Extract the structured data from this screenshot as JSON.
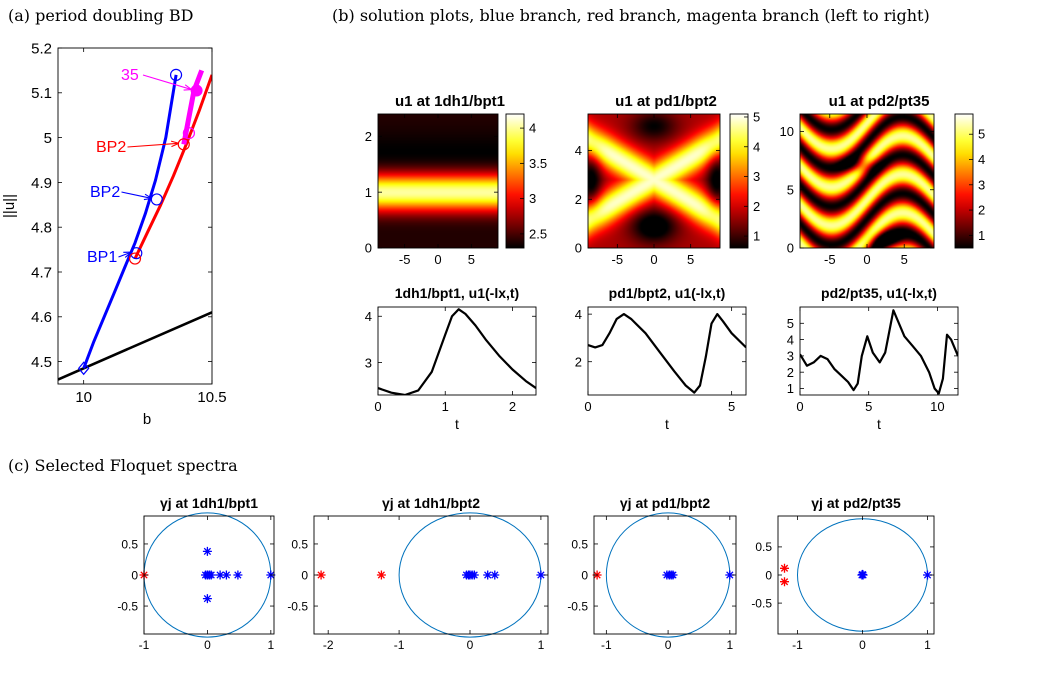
{
  "sections": {
    "a": "(a) period doubling BD",
    "b": "(b) solution plots, blue branch, red branch, magenta branch (left to right)",
    "c": "(c) Selected Floquet spectra"
  },
  "colors": {
    "blue": "#0000ff",
    "red": "#ff0000",
    "magenta": "#ff00ff",
    "black": "#000000",
    "circle": "#0072bd"
  },
  "chart_data": [
    {
      "id": "bd",
      "type": "line",
      "xlabel": "b",
      "ylabel": "||u||",
      "xlim": [
        9.9,
        10.5
      ],
      "ylim": [
        4.45,
        5.2
      ],
      "xticks": [
        10,
        10.5
      ],
      "yticks": [
        4.5,
        4.6,
        4.7,
        4.8,
        4.9,
        5,
        5.1,
        5.2
      ],
      "series": [
        {
          "color": "black",
          "x": [
            9.9,
            10.5
          ],
          "y": [
            4.46,
            4.61
          ]
        },
        {
          "color": "blue",
          "x": [
            10.0,
            10.04,
            10.08,
            10.12,
            10.16,
            10.2,
            10.24,
            10.28,
            10.32,
            10.36
          ],
          "y": [
            4.485,
            4.545,
            4.6,
            4.655,
            4.71,
            4.765,
            4.83,
            4.905,
            5.0,
            5.14
          ]
        },
        {
          "color": "red",
          "x": [
            10.2,
            10.25,
            10.3,
            10.35,
            10.4,
            10.45,
            10.5
          ],
          "y": [
            4.73,
            4.79,
            4.85,
            4.915,
            4.985,
            5.06,
            5.14
          ]
        },
        {
          "color": "magenta",
          "x": [
            10.39,
            10.41,
            10.43,
            10.46
          ],
          "y": [
            4.985,
            5.045,
            5.105,
            5.15
          ]
        }
      ],
      "markers": [
        {
          "shape": "diamond",
          "color": "blue",
          "x": 10.0,
          "y": 4.485
        },
        {
          "shape": "circle",
          "color": "blue",
          "x": 10.205,
          "y": 4.742
        },
        {
          "shape": "circle",
          "color": "blue",
          "x": 10.285,
          "y": 4.862
        },
        {
          "shape": "circle",
          "color": "blue",
          "x": 10.36,
          "y": 5.14
        },
        {
          "shape": "circle",
          "color": "red",
          "x": 10.2,
          "y": 4.73
        },
        {
          "shape": "circle",
          "color": "red",
          "x": 10.39,
          "y": 4.985
        },
        {
          "shape": "circle",
          "color": "magenta",
          "x": 10.41,
          "y": 5.01
        },
        {
          "shape": "filled-circle",
          "color": "magenta",
          "x": 10.44,
          "y": 5.105
        }
      ],
      "annotations": [
        {
          "text": "35",
          "color": "magenta",
          "x": 10.44,
          "y": 5.105
        },
        {
          "text": "BP2",
          "color": "red",
          "x": 10.39,
          "y": 4.985
        },
        {
          "text": "BP2",
          "color": "blue",
          "x": 10.285,
          "y": 4.862
        },
        {
          "text": "BP1",
          "color": "blue",
          "x": 10.205,
          "y": 4.742
        }
      ]
    },
    {
      "id": "hm1",
      "type": "heatmap",
      "title": "u1 at 1dh1/bpt1",
      "xlim": [
        -9,
        9
      ],
      "ylim": [
        0,
        2.4
      ],
      "xticks": [
        -5,
        0,
        5
      ],
      "yticks": [
        0,
        1,
        2
      ],
      "pattern": "horizontal-band",
      "colorbar": {
        "ticks": [
          2.5,
          3,
          3.5,
          4
        ],
        "range": [
          2.3,
          4.2
        ]
      }
    },
    {
      "id": "hm2",
      "type": "heatmap",
      "title": "u1 at pd1/bpt2",
      "xlim": [
        -9,
        9
      ],
      "ylim": [
        0,
        5.5
      ],
      "xticks": [
        -5,
        0,
        5
      ],
      "yticks": [
        0,
        2,
        4
      ],
      "pattern": "x-crossing",
      "colorbar": {
        "ticks": [
          1,
          2,
          3,
          4,
          5
        ],
        "range": [
          0.6,
          5.1
        ]
      }
    },
    {
      "id": "hm3",
      "type": "heatmap",
      "title": "u1 at pd2/pt35",
      "xlim": [
        -9,
        9
      ],
      "ylim": [
        0,
        11.5
      ],
      "xticks": [
        -5,
        0,
        5
      ],
      "yticks": [
        0,
        5,
        10
      ],
      "pattern": "waves",
      "colorbar": {
        "ticks": [
          1,
          2,
          3,
          4,
          5
        ],
        "range": [
          0.5,
          5.8
        ]
      }
    },
    {
      "id": "ts1",
      "type": "line",
      "title": "1dh1/bpt1, u1(-lx,t)",
      "xlabel": "t",
      "xlim": [
        0,
        2.35
      ],
      "ylim": [
        2.3,
        4.2
      ],
      "xticks": [
        0,
        1,
        2
      ],
      "yticks": [
        3,
        4
      ],
      "x": [
        0,
        0.2,
        0.4,
        0.6,
        0.8,
        1.0,
        1.1,
        1.2,
        1.3,
        1.45,
        1.6,
        1.8,
        2.0,
        2.2,
        2.35
      ],
      "y": [
        2.45,
        2.35,
        2.3,
        2.4,
        2.8,
        3.6,
        4.0,
        4.15,
        4.05,
        3.8,
        3.5,
        3.15,
        2.85,
        2.6,
        2.45
      ]
    },
    {
      "id": "ts2",
      "type": "line",
      "title": "pd1/bpt2, u1(-lx,t)",
      "xlabel": "t",
      "xlim": [
        0,
        5.5
      ],
      "ylim": [
        0.6,
        4.3
      ],
      "xticks": [
        0,
        5
      ],
      "yticks": [
        2,
        4
      ],
      "x": [
        0,
        0.25,
        0.5,
        0.75,
        1.0,
        1.25,
        1.5,
        2.0,
        2.5,
        3.0,
        3.4,
        3.7,
        3.9,
        4.1,
        4.3,
        4.5,
        4.7,
        5.0,
        5.5
      ],
      "y": [
        2.7,
        2.6,
        2.7,
        3.2,
        3.8,
        4.0,
        3.8,
        3.2,
        2.4,
        1.6,
        1.0,
        0.7,
        1.0,
        2.2,
        3.6,
        4.0,
        3.7,
        3.2,
        2.6
      ]
    },
    {
      "id": "ts3",
      "type": "line",
      "title": "pd2/pt35, u1(-lx,t)",
      "xlabel": "t",
      "xlim": [
        0,
        11.5
      ],
      "ylim": [
        0.6,
        6.0
      ],
      "xticks": [
        0,
        5,
        10
      ],
      "yticks": [
        1,
        2,
        3,
        4,
        5
      ],
      "x": [
        0,
        0.5,
        1.0,
        1.5,
        2.0,
        2.5,
        3.0,
        3.5,
        3.9,
        4.2,
        4.5,
        4.9,
        5.3,
        5.8,
        6.2,
        6.5,
        6.8,
        7.1,
        7.6,
        8.2,
        8.8,
        9.4,
        9.8,
        10.1,
        10.4,
        10.7,
        11.0,
        11.5
      ],
      "y": [
        3.1,
        2.4,
        2.6,
        3.0,
        2.8,
        2.2,
        1.8,
        1.4,
        0.9,
        1.3,
        3.0,
        4.2,
        3.2,
        2.6,
        3.2,
        4.5,
        5.8,
        5.2,
        4.2,
        3.6,
        3.0,
        2.0,
        1.0,
        0.7,
        1.6,
        4.3,
        4.0,
        3.0
      ]
    },
    {
      "id": "fl1",
      "type": "scatter",
      "title": "γj at 1dh1/bpt1",
      "xlim": [
        -1,
        1.05
      ],
      "ylim": [
        -0.95,
        0.95
      ],
      "xticks": [
        -1,
        0,
        1
      ],
      "yticks": [
        -0.5,
        0,
        0.5
      ],
      "unit_circle": true,
      "points": [
        {
          "x": -1.0,
          "y": 0,
          "color": "red"
        },
        {
          "x": 1.0,
          "y": 0,
          "color": "blue"
        },
        {
          "x": 0,
          "y": 0.38,
          "color": "blue"
        },
        {
          "x": 0,
          "y": -0.38,
          "color": "blue"
        },
        {
          "x": -0.03,
          "y": 0,
          "color": "blue"
        },
        {
          "x": 0,
          "y": 0,
          "color": "blue"
        },
        {
          "x": 0.03,
          "y": 0,
          "color": "blue"
        },
        {
          "x": 0.06,
          "y": 0,
          "color": "blue"
        },
        {
          "x": 0.2,
          "y": 0,
          "color": "blue"
        },
        {
          "x": 0.3,
          "y": 0,
          "color": "blue"
        },
        {
          "x": 0.48,
          "y": 0,
          "color": "blue"
        }
      ]
    },
    {
      "id": "fl2",
      "type": "scatter",
      "title": "γj at 1dh1/bpt2",
      "xlim": [
        -2.2,
        1.1
      ],
      "ylim": [
        -0.95,
        0.95
      ],
      "xticks": [
        -2,
        -1,
        0,
        1
      ],
      "yticks": [
        -0.5,
        0,
        0.5
      ],
      "unit_circle": true,
      "points": [
        {
          "x": -2.1,
          "y": 0,
          "color": "red"
        },
        {
          "x": -1.25,
          "y": 0,
          "color": "red"
        },
        {
          "x": 1.0,
          "y": 0,
          "color": "blue"
        },
        {
          "x": -0.05,
          "y": 0,
          "color": "blue"
        },
        {
          "x": -0.02,
          "y": 0,
          "color": "blue"
        },
        {
          "x": 0,
          "y": 0,
          "color": "blue"
        },
        {
          "x": 0.03,
          "y": 0,
          "color": "blue"
        },
        {
          "x": 0.06,
          "y": 0,
          "color": "blue"
        },
        {
          "x": 0.25,
          "y": 0,
          "color": "blue"
        },
        {
          "x": 0.35,
          "y": 0,
          "color": "blue"
        }
      ]
    },
    {
      "id": "fl3",
      "type": "scatter",
      "title": "γj at pd1/bpt2",
      "xlim": [
        -1.2,
        1.1
      ],
      "ylim": [
        -0.95,
        0.95
      ],
      "xticks": [
        -1,
        0,
        1
      ],
      "yticks": [
        -0.5,
        0,
        0.5
      ],
      "unit_circle": true,
      "points": [
        {
          "x": -1.15,
          "y": 0,
          "color": "red"
        },
        {
          "x": 1.0,
          "y": 0,
          "color": "blue"
        },
        {
          "x": -0.02,
          "y": 0,
          "color": "blue"
        },
        {
          "x": 0.02,
          "y": 0,
          "color": "blue"
        },
        {
          "x": 0.05,
          "y": 0,
          "color": "blue"
        },
        {
          "x": 0.08,
          "y": 0,
          "color": "blue"
        }
      ]
    },
    {
      "id": "fl4",
      "type": "scatter",
      "title": "γj at pd2/pt35",
      "xlim": [
        -1.3,
        1.1
      ],
      "ylim": [
        -1.05,
        1.05
      ],
      "xticks": [
        -1,
        0,
        1
      ],
      "yticks": [
        -0.5,
        0,
        0.5
      ],
      "unit_circle": true,
      "points": [
        {
          "x": -1.2,
          "y": 0.12,
          "color": "red"
        },
        {
          "x": -1.2,
          "y": -0.12,
          "color": "red"
        },
        {
          "x": 1.0,
          "y": 0,
          "color": "blue"
        },
        {
          "x": -0.01,
          "y": 0,
          "color": "blue"
        },
        {
          "x": 0.01,
          "y": 0,
          "color": "blue"
        },
        {
          "x": 0,
          "y": 0.01,
          "color": "blue"
        }
      ]
    }
  ]
}
